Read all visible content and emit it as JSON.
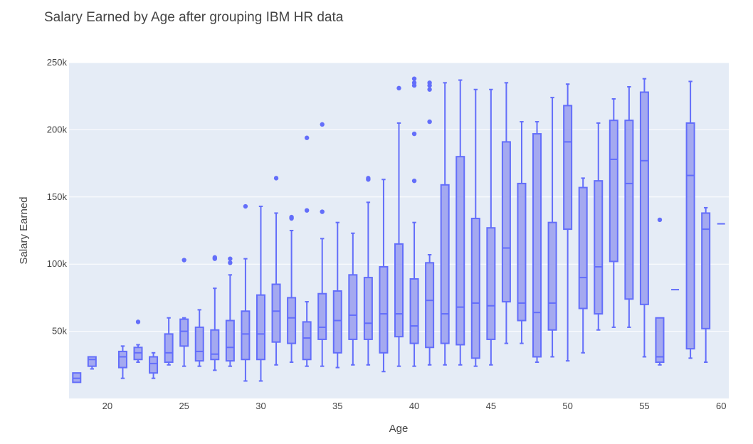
{
  "chart_data": {
    "type": "box",
    "title": "Salary Earned by Age after grouping IBM HR data",
    "xlabel": "Age",
    "ylabel": "Salary Earned",
    "xlim": [
      17.5,
      60.5
    ],
    "ylim": [
      0,
      250000
    ],
    "xticks": [
      20,
      25,
      30,
      35,
      40,
      45,
      50,
      55,
      60
    ],
    "yticks": [
      50000,
      100000,
      150000,
      200000,
      250000
    ],
    "ytick_labels": [
      "50k",
      "100k",
      "150k",
      "200k",
      "250k"
    ],
    "grid": true,
    "colors": {
      "box_fill": "#a4a9f0",
      "box_line": "#636efa",
      "plot_bg": "#e5ecf6",
      "grid": "#ffffff",
      "text": "#444444"
    },
    "boxes": [
      {
        "age": 18,
        "min": 12000,
        "q1": 12000,
        "median": 15000,
        "q3": 19000,
        "max": 19000,
        "outliers": []
      },
      {
        "age": 19,
        "min": 22000,
        "q1": 24000,
        "median": 29000,
        "q3": 31000,
        "max": 31000,
        "outliers": []
      },
      {
        "age": 21,
        "min": 15000,
        "q1": 23000,
        "median": 31000,
        "q3": 35000,
        "max": 39000,
        "outliers": []
      },
      {
        "age": 22,
        "min": 27000,
        "q1": 29000,
        "median": 34000,
        "q3": 38000,
        "max": 40000,
        "outliers": [
          57000
        ]
      },
      {
        "age": 23,
        "min": 15000,
        "q1": 19000,
        "median": 26000,
        "q3": 31000,
        "max": 34000,
        "outliers": []
      },
      {
        "age": 24,
        "min": 25000,
        "q1": 27000,
        "median": 34000,
        "q3": 48000,
        "max": 60000,
        "outliers": []
      },
      {
        "age": 25,
        "min": 24000,
        "q1": 39000,
        "median": 50000,
        "q3": 59000,
        "max": 60000,
        "outliers": [
          103000
        ]
      },
      {
        "age": 26,
        "min": 24000,
        "q1": 28000,
        "median": 35000,
        "q3": 53000,
        "max": 66000,
        "outliers": []
      },
      {
        "age": 27,
        "min": 21000,
        "q1": 29000,
        "median": 33000,
        "q3": 51000,
        "max": 82000,
        "outliers": [
          104000,
          105000
        ]
      },
      {
        "age": 28,
        "min": 24000,
        "q1": 28000,
        "median": 38000,
        "q3": 58000,
        "max": 92000,
        "outliers": [
          101000,
          104000
        ]
      },
      {
        "age": 29,
        "min": 13000,
        "q1": 29000,
        "median": 48000,
        "q3": 65000,
        "max": 104000,
        "outliers": [
          143000
        ]
      },
      {
        "age": 30,
        "min": 13000,
        "q1": 29000,
        "median": 48000,
        "q3": 77000,
        "max": 143000,
        "outliers": []
      },
      {
        "age": 31,
        "min": 25000,
        "q1": 42000,
        "median": 65000,
        "q3": 85000,
        "max": 138000,
        "outliers": [
          164000
        ]
      },
      {
        "age": 32,
        "min": 27000,
        "q1": 41000,
        "median": 60000,
        "q3": 75000,
        "max": 125000,
        "outliers": [
          134000,
          135000
        ]
      },
      {
        "age": 33,
        "min": 24000,
        "q1": 29000,
        "median": 45000,
        "q3": 57000,
        "max": 72000,
        "outliers": [
          140000,
          194000
        ]
      },
      {
        "age": 34,
        "min": 24000,
        "q1": 44000,
        "median": 53000,
        "q3": 78000,
        "max": 119000,
        "outliers": [
          139000,
          204000
        ]
      },
      {
        "age": 35,
        "min": 23000,
        "q1": 34000,
        "median": 58000,
        "q3": 80000,
        "max": 131000,
        "outliers": []
      },
      {
        "age": 36,
        "min": 25000,
        "q1": 44000,
        "median": 62000,
        "q3": 92000,
        "max": 123000,
        "outliers": []
      },
      {
        "age": 37,
        "min": 25000,
        "q1": 44000,
        "median": 56000,
        "q3": 90000,
        "max": 146000,
        "outliers": [
          163000,
          164000
        ]
      },
      {
        "age": 38,
        "min": 20000,
        "q1": 34000,
        "median": 63000,
        "q3": 98000,
        "max": 163000,
        "outliers": []
      },
      {
        "age": 39,
        "min": 24000,
        "q1": 46000,
        "median": 63000,
        "q3": 115000,
        "max": 205000,
        "outliers": [
          231000
        ]
      },
      {
        "age": 40,
        "min": 24000,
        "q1": 41000,
        "median": 54000,
        "q3": 89000,
        "max": 131000,
        "outliers": [
          162000,
          197000,
          233000,
          235000,
          238000
        ]
      },
      {
        "age": 41,
        "min": 25000,
        "q1": 38000,
        "median": 73000,
        "q3": 101000,
        "max": 107000,
        "outliers": [
          206000,
          230000,
          233000,
          235000
        ]
      },
      {
        "age": 42,
        "min": 25000,
        "q1": 41000,
        "median": 63000,
        "q3": 159000,
        "max": 235000,
        "outliers": []
      },
      {
        "age": 43,
        "min": 25000,
        "q1": 40000,
        "median": 68000,
        "q3": 180000,
        "max": 237000,
        "outliers": []
      },
      {
        "age": 44,
        "min": 24000,
        "q1": 30000,
        "median": 71000,
        "q3": 134000,
        "max": 230000,
        "outliers": []
      },
      {
        "age": 45,
        "min": 25000,
        "q1": 44000,
        "median": 69000,
        "q3": 127000,
        "max": 230000,
        "outliers": []
      },
      {
        "age": 46,
        "min": 41000,
        "q1": 72000,
        "median": 112000,
        "q3": 191000,
        "max": 235000,
        "outliers": []
      },
      {
        "age": 47,
        "min": 41000,
        "q1": 58000,
        "median": 71000,
        "q3": 160000,
        "max": 206000,
        "outliers": []
      },
      {
        "age": 48,
        "min": 27000,
        "q1": 31000,
        "median": 64000,
        "q3": 197000,
        "max": 206000,
        "outliers": []
      },
      {
        "age": 49,
        "min": 31000,
        "q1": 51000,
        "median": 71000,
        "q3": 131000,
        "max": 224000,
        "outliers": []
      },
      {
        "age": 50,
        "min": 28000,
        "q1": 126000,
        "median": 191000,
        "q3": 218000,
        "max": 234000,
        "outliers": []
      },
      {
        "age": 51,
        "min": 34000,
        "q1": 67000,
        "median": 90000,
        "q3": 157000,
        "max": 164000,
        "outliers": []
      },
      {
        "age": 52,
        "min": 51000,
        "q1": 63000,
        "median": 98000,
        "q3": 162000,
        "max": 205000,
        "outliers": []
      },
      {
        "age": 53,
        "min": 53000,
        "q1": 102000,
        "median": 178000,
        "q3": 207000,
        "max": 223000,
        "outliers": []
      },
      {
        "age": 54,
        "min": 53000,
        "q1": 74000,
        "median": 160000,
        "q3": 207000,
        "max": 232000,
        "outliers": []
      },
      {
        "age": 55,
        "min": 31000,
        "q1": 70000,
        "median": 177000,
        "q3": 228000,
        "max": 238000,
        "outliers": []
      },
      {
        "age": 56,
        "min": 25000,
        "q1": 27000,
        "median": 31000,
        "q3": 60000,
        "max": 60000,
        "outliers": [
          133000
        ]
      },
      {
        "age": 57,
        "min": 81000,
        "q1": 81000,
        "median": 81000,
        "q3": 81000,
        "max": 81000,
        "outliers": []
      },
      {
        "age": 58,
        "min": 30000,
        "q1": 37000,
        "median": 166000,
        "q3": 205000,
        "max": 236000,
        "outliers": []
      },
      {
        "age": 59,
        "min": 27000,
        "q1": 52000,
        "median": 126000,
        "q3": 138000,
        "max": 142000,
        "outliers": []
      },
      {
        "age": 60,
        "min": 130000,
        "q1": 130000,
        "median": 130000,
        "q3": 130000,
        "max": 130000,
        "outliers": []
      }
    ]
  }
}
